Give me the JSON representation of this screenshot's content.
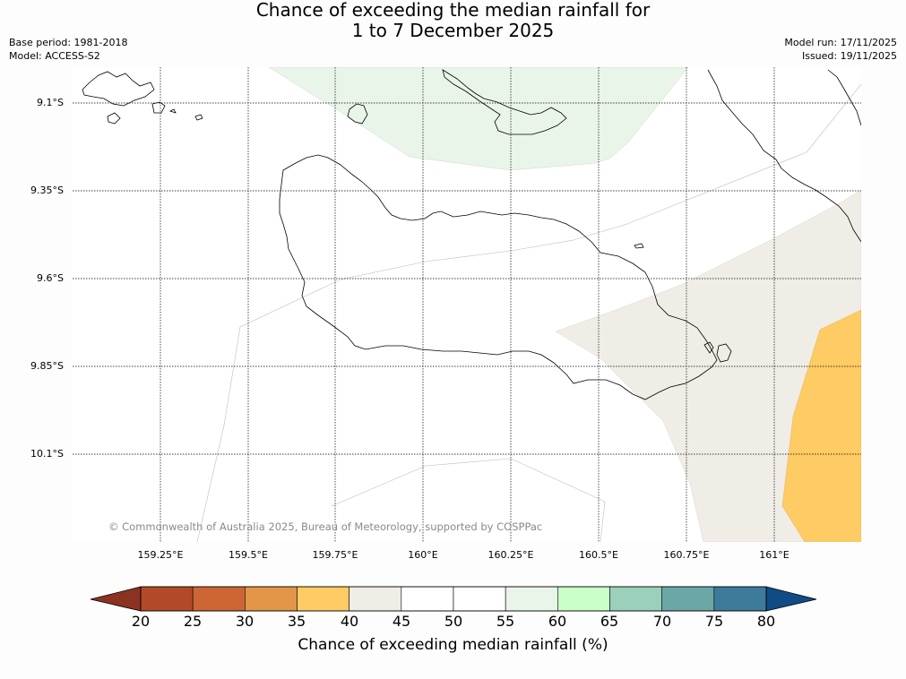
{
  "title": {
    "line1": "Chance of exceeding the median rainfall for",
    "line2": "1 to 7 December 2025"
  },
  "meta_left": {
    "base_period": "Base period: 1981-2018",
    "model": "Model: ACCESS-S2"
  },
  "meta_right": {
    "model_run": "Model run: 17/11/2025",
    "issued": "Issued: 19/11/2025"
  },
  "map": {
    "lat_labels": [
      "9.1°S",
      "9.35°S",
      "9.6°S",
      "9.85°S",
      "10.1°S"
    ],
    "lon_labels": [
      "159.25°E",
      "159.5°E",
      "159.75°E",
      "160°E",
      "160.25°E",
      "160.5°E",
      "160.75°E",
      "161°E"
    ],
    "copyright": "© Commonwealth of Australia 2025, Bureau of Meteorology, supported by COSPPac"
  },
  "colorbar": {
    "ticks": [
      "20",
      "25",
      "30",
      "35",
      "40",
      "45",
      "50",
      "55",
      "60",
      "65",
      "70",
      "75",
      "80"
    ],
    "colors": [
      "#b24a27",
      "#cd6634",
      "#e39548",
      "#fecb64",
      "#f0ece6",
      "#ffffff",
      "#ffffff",
      "#e9f5e9",
      "#caffca",
      "#9bd1bb",
      "#6ca7a8",
      "#3e7a99"
    ],
    "under_color": "#8c3222",
    "over_color": "#0f4c86",
    "label": "Chance of exceeding median rainfall (%)"
  },
  "region_colors": {
    "green_55_60": "#e9f5e9",
    "beige_40_45": "#f0ece6",
    "orange_35_40": "#fecb64"
  }
}
